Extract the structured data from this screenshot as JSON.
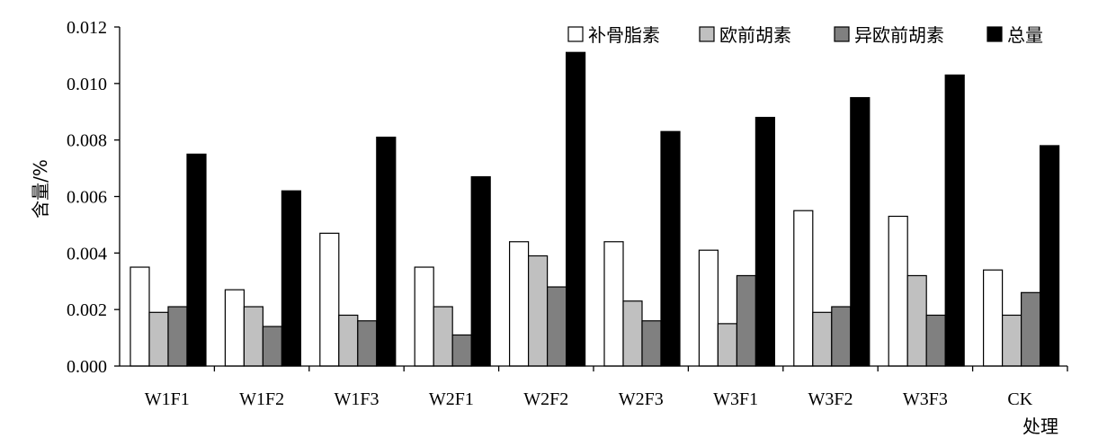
{
  "chart_data": {
    "type": "bar",
    "title": "",
    "xlabel": "处理",
    "ylabel": "含量/%",
    "categories": [
      "W1F1",
      "W1F2",
      "W1F3",
      "W2F1",
      "W2F2",
      "W2F3",
      "W3F1",
      "W3F2",
      "W3F3",
      "CK"
    ],
    "ylim": [
      0,
      0.012
    ],
    "yticks": [
      "0.000",
      "0.002",
      "0.004",
      "0.006",
      "0.008",
      "0.010",
      "0.012"
    ],
    "legend_position": "top-right",
    "grid": false,
    "series": [
      {
        "name": "补骨脂素",
        "color": "#ffffff",
        "values": [
          0.0035,
          0.0027,
          0.0047,
          0.0035,
          0.0044,
          0.0044,
          0.0041,
          0.0055,
          0.0053,
          0.0034
        ]
      },
      {
        "name": "欧前胡素",
        "color": "#c0c0c0",
        "values": [
          0.0019,
          0.0021,
          0.0018,
          0.0021,
          0.0039,
          0.0023,
          0.0015,
          0.0019,
          0.0032,
          0.0018
        ]
      },
      {
        "name": "异欧前胡素",
        "color": "#808080",
        "values": [
          0.0021,
          0.0014,
          0.0016,
          0.0011,
          0.0028,
          0.0016,
          0.0032,
          0.0021,
          0.0018,
          0.0026
        ]
      },
      {
        "name": "总量",
        "color": "#000000",
        "values": [
          0.0075,
          0.0062,
          0.0081,
          0.0067,
          0.0111,
          0.0083,
          0.0088,
          0.0095,
          0.0103,
          0.0078
        ]
      }
    ]
  }
}
